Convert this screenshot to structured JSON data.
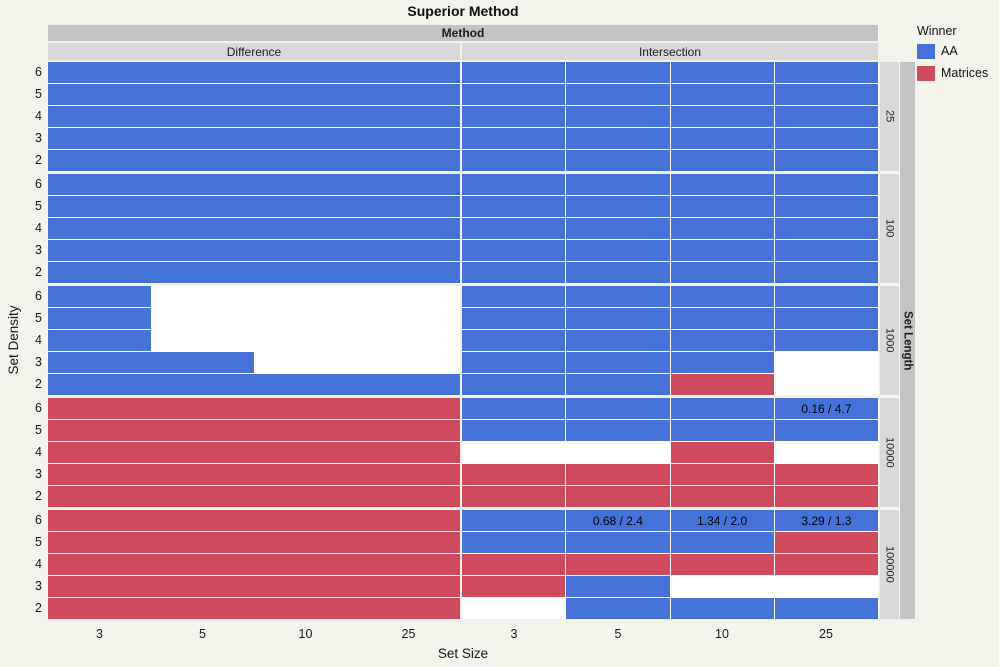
{
  "title": "Superior Method",
  "legend": {
    "title": "Winner",
    "entries": [
      {
        "label": "AA",
        "color": "#4472d8"
      },
      {
        "label": "Matrices",
        "color": "#ce4a5c"
      }
    ]
  },
  "colors": {
    "AA": "#4472d8",
    "Matrices": "#ce4a5c",
    "empty_panel": "#ffffff",
    "strip_dark": "#c3c3c3",
    "strip_light": "#d9d9d9",
    "background": "#f5f4ec"
  },
  "chart_data": {
    "type": "heatmap",
    "title": "Superior Method",
    "xlabel": "Set Size",
    "ylabel": "Set Density",
    "col_facet_title": "Method",
    "col_facets": [
      "Difference",
      "Intersection"
    ],
    "row_facet_title": "Set Length",
    "row_facets": [
      "25",
      "100",
      "1000",
      "10000",
      "100000"
    ],
    "x_ticks": [
      "3",
      "5",
      "10",
      "25"
    ],
    "y_ticks": [
      "6",
      "5",
      "4",
      "3",
      "2"
    ],
    "legend_title": "Winner",
    "cell_legend": {
      "A": "AA",
      "M": "Matrices",
      ".": "no winner shown"
    },
    "cells": {
      "25": {
        "Difference": [
          "AAAA",
          "AAAA",
          "AAAA",
          "AAAA",
          "AAAA"
        ],
        "Intersection": [
          "AAAA",
          "AAAA",
          "AAAA",
          "AAAA",
          "AAAA"
        ]
      },
      "100": {
        "Difference": [
          "AAAA",
          "AAAA",
          "AAAA",
          "AAAA",
          "AAAA"
        ],
        "Intersection": [
          "AAAA",
          "AAAA",
          "AAAA",
          "AAAA",
          "AAAA"
        ]
      },
      "1000": {
        "Difference": [
          "A...",
          "A...",
          "A...",
          "AA..",
          "AAAA"
        ],
        "Intersection": [
          "AAAA",
          "AAAA",
          "AAAA",
          "AAA.",
          "AAM."
        ]
      },
      "10000": {
        "Difference": [
          "MMMM",
          "MMMM",
          "MMMM",
          "MMMM",
          "MMMM"
        ],
        "Intersection": [
          "AAAA",
          "AAAA",
          "..M.",
          "MMMM",
          "MMMM"
        ]
      },
      "100000": {
        "Difference": [
          "MMMM",
          "MMMM",
          "MMMM",
          "MMMM",
          "MMMM"
        ],
        "Intersection": [
          "AAAA",
          "AAAM",
          "MMMM",
          "MA..",
          ".AAA"
        ]
      }
    },
    "annotations": [
      {
        "row_facet": "10000",
        "col_facet": "Intersection",
        "y": "6",
        "x": "25",
        "text": "0.16 / 4.7"
      },
      {
        "row_facet": "100000",
        "col_facet": "Intersection",
        "y": "6",
        "x": "5",
        "text": "0.68 / 2.4"
      },
      {
        "row_facet": "100000",
        "col_facet": "Intersection",
        "y": "6",
        "x": "10",
        "text": "1.34 / 2.0"
      },
      {
        "row_facet": "100000",
        "col_facet": "Intersection",
        "y": "6",
        "x": "25",
        "text": "3.29 / 1.3"
      }
    ]
  }
}
